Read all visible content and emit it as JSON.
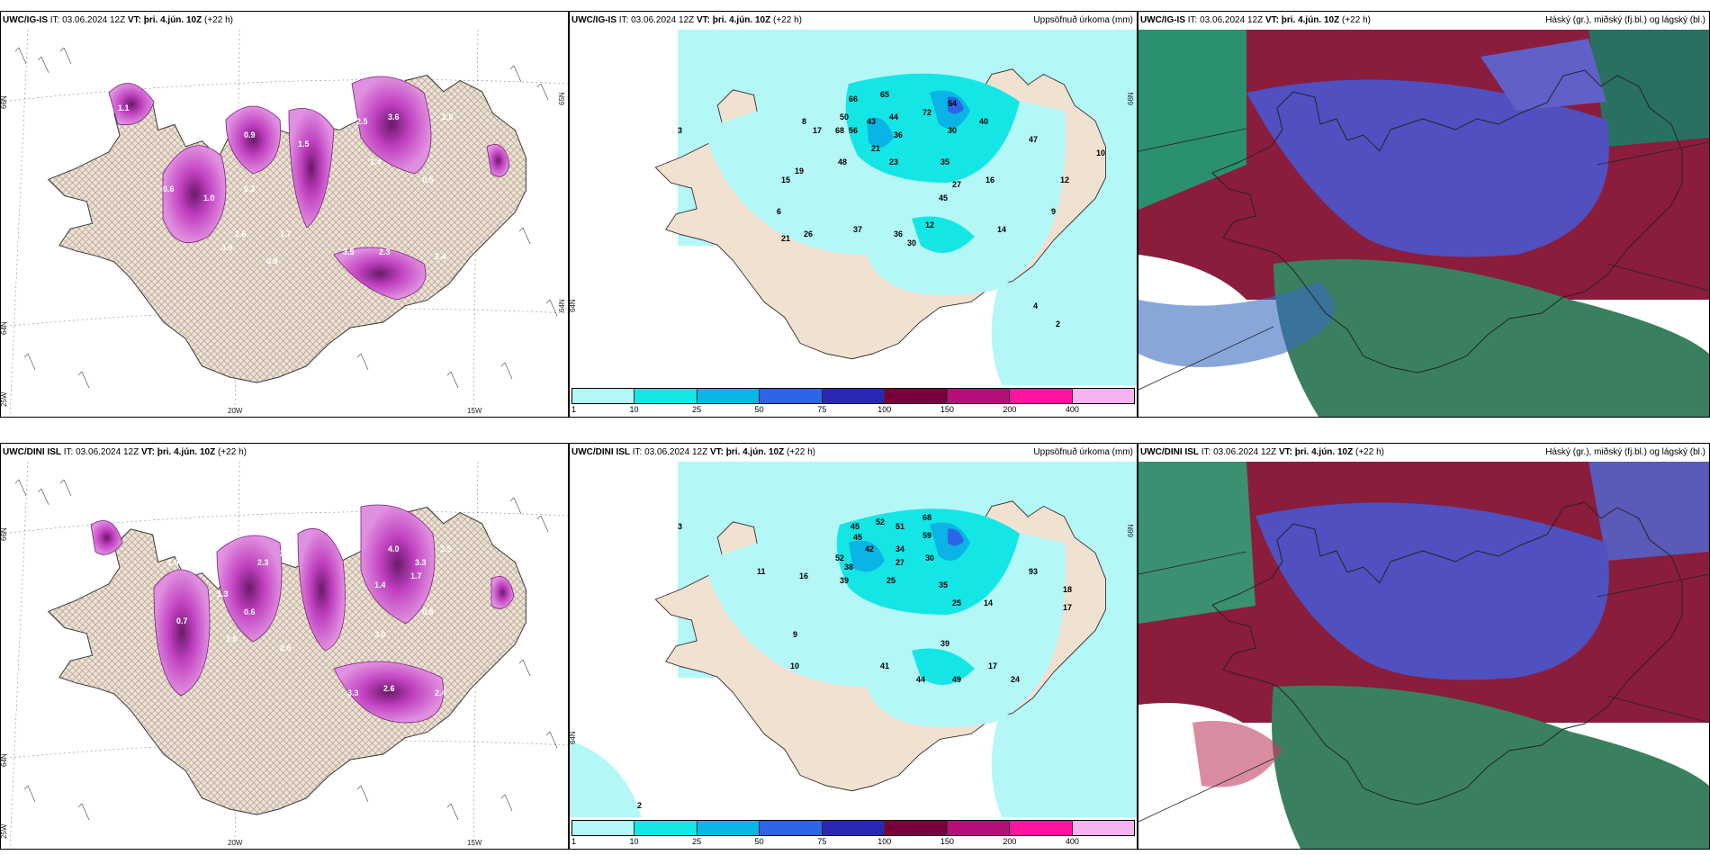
{
  "panels": {
    "r1c1": {
      "model": "UWC/IG-IS",
      "it": "IT: 03.06.2024 12Z",
      "vt_label": "VT:",
      "vt": "þri. 4.jún. 10Z",
      "lead": "(+22 h)",
      "right": ""
    },
    "r1c2": {
      "model": "UWC/IG-IS",
      "it": "IT: 03.06.2024 12Z",
      "vt_label": "VT:",
      "vt": "þri. 4.jún. 10Z",
      "lead": "(+22 h)",
      "right": "Uppsöfnuð úrkoma (mm)"
    },
    "r1c3": {
      "model": "UWC/IG-IS",
      "it": "IT: 03.06.2024 12Z",
      "vt_label": "VT:",
      "vt": "þri. 4.jún. 10Z",
      "lead": "(+22 h)",
      "right": "Háský (gr.), miðský (fj.bl.) og lágský (bl.)"
    },
    "r2c1": {
      "model": "UWC/DINI ISL",
      "it": "IT: 03.06.2024 12Z",
      "vt_label": "VT:",
      "vt": "þri. 4.jún. 10Z",
      "lead": "(+22 h)",
      "right": ""
    },
    "r2c2": {
      "model": "UWC/DINI ISL",
      "it": "IT: 03.06.2024 12Z",
      "vt_label": "VT:",
      "vt": "þri. 4.jún. 10Z",
      "lead": "(+22 h)",
      "right": "Uppsöfnuð úrkoma (mm)"
    },
    "r2c3": {
      "model": "UWC/DINI ISL",
      "it": "IT: 03.06.2024 12Z",
      "vt_label": "VT:",
      "vt": "þri. 4.jún. 10Z",
      "lead": "(+22 h)",
      "right": "Háský (gr.), miðský (fj.bl.) og lágský (bl.)"
    }
  },
  "grid": {
    "lat66": "66N",
    "lat64": "64N",
    "lat65": "65N",
    "lon25": "25W",
    "lon20": "20W",
    "lon15": "15W"
  },
  "legend": {
    "ticks": [
      "1",
      "10",
      "25",
      "50",
      "75",
      "100",
      "150",
      "200",
      "400"
    ],
    "colors": [
      "#b4f7f7",
      "#14e6e6",
      "#0ab4e6",
      "#2e64e6",
      "#2828b4",
      "#78003c",
      "#b40f78",
      "#ff14a0",
      "#f5b4f0"
    ]
  },
  "precip_labels_top": [
    {
      "v": "66"
    },
    {
      "v": "65"
    },
    {
      "v": "50"
    },
    {
      "v": "68"
    },
    {
      "v": "56"
    },
    {
      "v": "43"
    },
    {
      "v": "44"
    },
    {
      "v": "36"
    },
    {
      "v": "72"
    },
    {
      "v": "54"
    },
    {
      "v": "40"
    },
    {
      "v": "30"
    },
    {
      "v": "21"
    },
    {
      "v": "23"
    },
    {
      "v": "48"
    },
    {
      "v": "35"
    },
    {
      "v": "27"
    },
    {
      "v": "45"
    },
    {
      "v": "16"
    },
    {
      "v": "47"
    },
    {
      "v": "37"
    },
    {
      "v": "36"
    },
    {
      "v": "12"
    },
    {
      "v": "30"
    },
    {
      "v": "26"
    },
    {
      "v": "21"
    },
    {
      "v": "14"
    },
    {
      "v": "12"
    },
    {
      "v": "10"
    },
    {
      "v": "9"
    },
    {
      "v": "8"
    },
    {
      "v": "17"
    },
    {
      "v": "19"
    },
    {
      "v": "15"
    },
    {
      "v": "6"
    },
    {
      "v": "4"
    },
    {
      "v": "2"
    },
    {
      "v": "3"
    }
  ],
  "precip_labels_bottom": [
    {
      "v": "45"
    },
    {
      "v": "45"
    },
    {
      "v": "52"
    },
    {
      "v": "51"
    },
    {
      "v": "68"
    },
    {
      "v": "59"
    },
    {
      "v": "42"
    },
    {
      "v": "34"
    },
    {
      "v": "27"
    },
    {
      "v": "52"
    },
    {
      "v": "38"
    },
    {
      "v": "39"
    },
    {
      "v": "25"
    },
    {
      "v": "30"
    },
    {
      "v": "35"
    },
    {
      "v": "25"
    },
    {
      "v": "14"
    },
    {
      "v": "93"
    },
    {
      "v": "18"
    },
    {
      "v": "17"
    },
    {
      "v": "41"
    },
    {
      "v": "44"
    },
    {
      "v": "49"
    },
    {
      "v": "24"
    },
    {
      "v": "39"
    },
    {
      "v": "17"
    },
    {
      "v": "10"
    },
    {
      "v": "11"
    },
    {
      "v": "16"
    },
    {
      "v": "9"
    },
    {
      "v": "3"
    },
    {
      "v": "2"
    }
  ],
  "vis_labels_top": [
    "1.1",
    "0.9",
    "1.5",
    "2.5",
    "3.6",
    "2.6",
    "1.0",
    "0.3",
    "2.6",
    "3.0",
    "0.9",
    "1.4",
    "0.5",
    "3.5",
    "2.3",
    "2.4",
    "0.6",
    "1.7"
  ],
  "vis_labels_bottom": [
    "1.5",
    "2.3",
    "3.6",
    "4.0",
    "3.3",
    "1.7",
    "2.5",
    "1.4",
    "0.8",
    "3.0",
    "2.6",
    "3.3",
    "2.6",
    "2.4",
    "1.3",
    "1.6",
    "0.7",
    "0.6"
  ]
}
